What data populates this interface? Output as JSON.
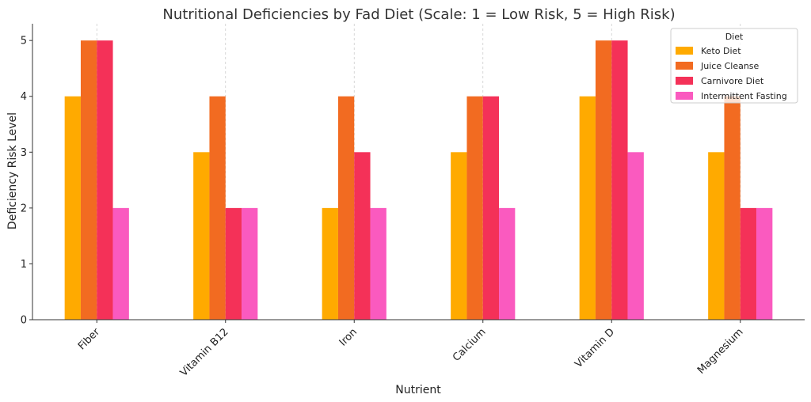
{
  "chart_data": {
    "type": "bar",
    "title": "Nutritional Deficiencies by Fad Diet (Scale: 1 = Low Risk, 5 = High Risk)",
    "xlabel": "Nutrient",
    "ylabel": "Deficiency Risk Level",
    "categories": [
      "Fiber",
      "Vitamin B12",
      "Iron",
      "Calcium",
      "Vitamin D",
      "Magnesium"
    ],
    "series": [
      {
        "name": "Keto Diet",
        "color": "#FFAA00",
        "values": [
          4,
          3,
          2,
          3,
          4,
          3
        ]
      },
      {
        "name": "Juice Cleanse",
        "color": "#F26B21",
        "values": [
          5,
          4,
          4,
          4,
          5,
          4
        ]
      },
      {
        "name": "Carnivore Diet",
        "color": "#F43158",
        "values": [
          5,
          2,
          3,
          4,
          5,
          2
        ]
      },
      {
        "name": "Intermittent Fasting",
        "color": "#FA5ABF",
        "values": [
          2,
          2,
          2,
          2,
          3,
          2
        ]
      }
    ],
    "ylim": [
      0,
      5.3
    ],
    "yticks": [
      "0",
      "1",
      "2",
      "3",
      "4",
      "5"
    ],
    "legend": {
      "title": "Diet",
      "position": "top-right"
    },
    "grid": "vertical-dashed"
  }
}
